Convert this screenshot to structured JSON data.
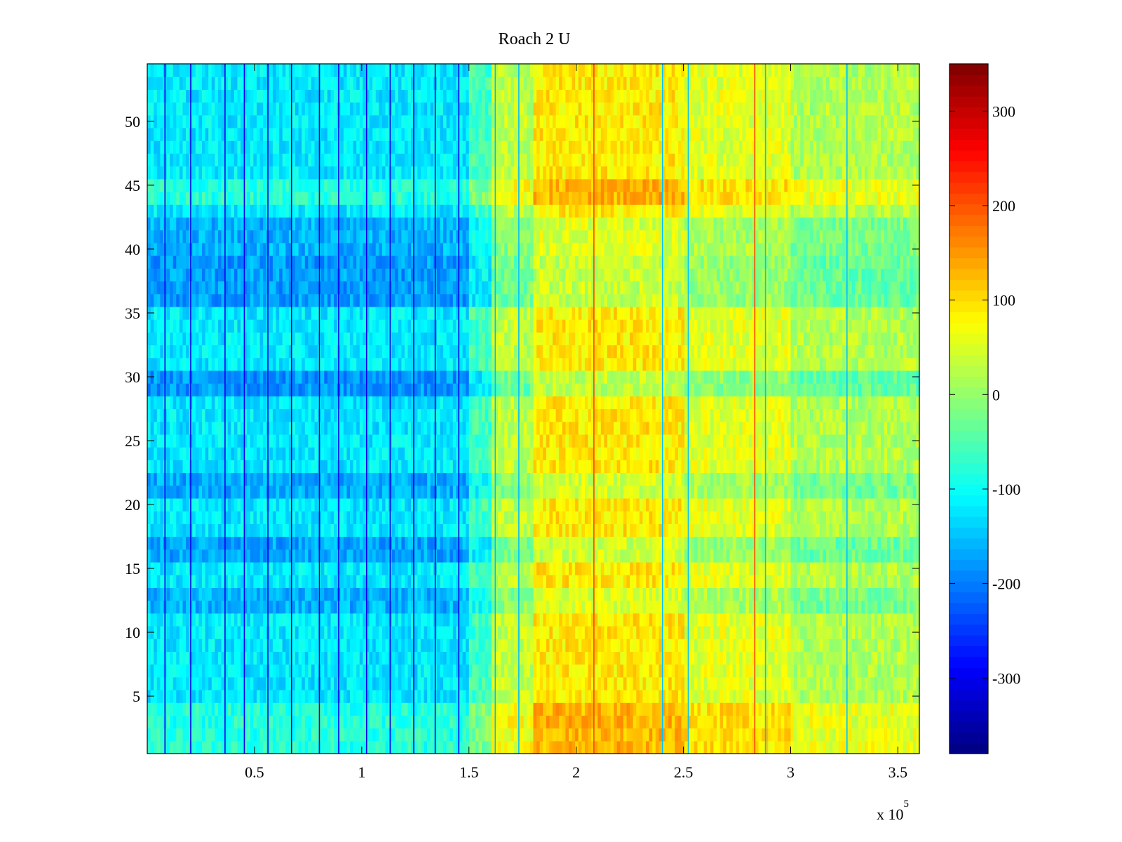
{
  "chart_data": {
    "type": "heatmap",
    "title": "Roach 2 U",
    "xlabel": "",
    "ylabel": "",
    "x_exponent_label": "x 10",
    "x_exponent_power": "5",
    "xlim": [
      0,
      360000
    ],
    "ylim": [
      0.5,
      54.5
    ],
    "x_ticks": [
      {
        "value": 50000,
        "label": "0.5"
      },
      {
        "value": 100000,
        "label": "1"
      },
      {
        "value": 150000,
        "label": "1.5"
      },
      {
        "value": 200000,
        "label": "2"
      },
      {
        "value": 250000,
        "label": "2.5"
      },
      {
        "value": 300000,
        "label": "3"
      },
      {
        "value": 350000,
        "label": "3.5"
      }
    ],
    "y_ticks": [
      {
        "value": 5,
        "label": "5"
      },
      {
        "value": 10,
        "label": "10"
      },
      {
        "value": 15,
        "label": "15"
      },
      {
        "value": 20,
        "label": "20"
      },
      {
        "value": 25,
        "label": "25"
      },
      {
        "value": 30,
        "label": "30"
      },
      {
        "value": 35,
        "label": "35"
      },
      {
        "value": 40,
        "label": "40"
      },
      {
        "value": 45,
        "label": "45"
      },
      {
        "value": 50,
        "label": "50"
      }
    ],
    "rows": 54,
    "colormap": "jet",
    "colorbar": {
      "clim": [
        -380,
        350
      ],
      "ticks": [
        {
          "value": 300,
          "label": "300"
        },
        {
          "value": 200,
          "label": "200"
        },
        {
          "value": 100,
          "label": "100"
        },
        {
          "value": 0,
          "label": "0"
        },
        {
          "value": -100,
          "label": "-100"
        },
        {
          "value": -200,
          "label": "-200"
        },
        {
          "value": -300,
          "label": "-300"
        }
      ]
    },
    "x_segments": [
      {
        "x_start": 0,
        "x_end": 150000,
        "base_value": -120
      },
      {
        "x_start": 150000,
        "x_end": 160000,
        "base_value": -60
      },
      {
        "x_start": 160000,
        "x_end": 180000,
        "base_value": 30
      },
      {
        "x_start": 180000,
        "x_end": 250000,
        "base_value": 90
      },
      {
        "x_start": 250000,
        "x_end": 300000,
        "base_value": 55
      },
      {
        "x_start": 300000,
        "x_end": 360000,
        "base_value": 20
      }
    ],
    "row_offsets": [
      {
        "rows": [
          1,
          4
        ],
        "offset": 40
      },
      {
        "rows": [
          12,
          13
        ],
        "offset": -40
      },
      {
        "rows": [
          16,
          17
        ],
        "offset": -50
      },
      {
        "rows": [
          21,
          22
        ],
        "offset": -45
      },
      {
        "rows": [
          29,
          30
        ],
        "offset": -60
      },
      {
        "rows": [
          36,
          39
        ],
        "offset": -55
      },
      {
        "rows": [
          40,
          43
        ],
        "offset": -40
      },
      {
        "rows": [
          43,
          45
        ],
        "offset": 40
      }
    ],
    "streaks_x": [
      8000,
      20000,
      36000,
      45000,
      56000,
      67000,
      80000,
      89000,
      102000,
      113000,
      124000,
      134000,
      145000,
      162000,
      173000,
      208000,
      240000,
      252000,
      283000,
      288000,
      326000
    ]
  }
}
